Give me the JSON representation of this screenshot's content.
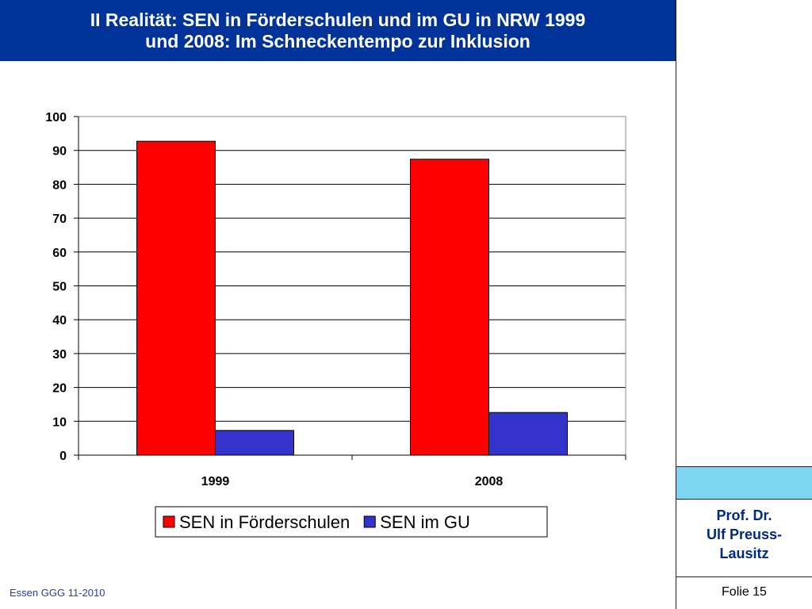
{
  "slide": {
    "title_lines": [
      "II Realität: SEN in Förderschulen und im GU in NRW 1999",
      "und 2008: Im Schneckentempo zur Inklusion"
    ],
    "author_lines": [
      "Prof. Dr.",
      "Ulf Preuss-",
      "Lausitz"
    ],
    "folio": "Folie 15",
    "footer": "Essen GGG 11-2010",
    "colors": {
      "title_bar": "#003399",
      "accent": "#7fd6f2"
    }
  },
  "chart_data": {
    "type": "bar",
    "categories": [
      "1999",
      "2008"
    ],
    "series": [
      {
        "name": "SEN in Förderschulen",
        "values": [
          92.7,
          87.4
        ],
        "color": "#ff0000"
      },
      {
        "name": "SEN im GU",
        "values": [
          7.3,
          12.6
        ],
        "color": "#3333cc"
      }
    ],
    "ylim": [
      0,
      100
    ],
    "yticks": [
      0,
      10,
      20,
      30,
      40,
      50,
      60,
      70,
      80,
      90,
      100
    ],
    "grid": true,
    "legend_position": "bottom"
  }
}
